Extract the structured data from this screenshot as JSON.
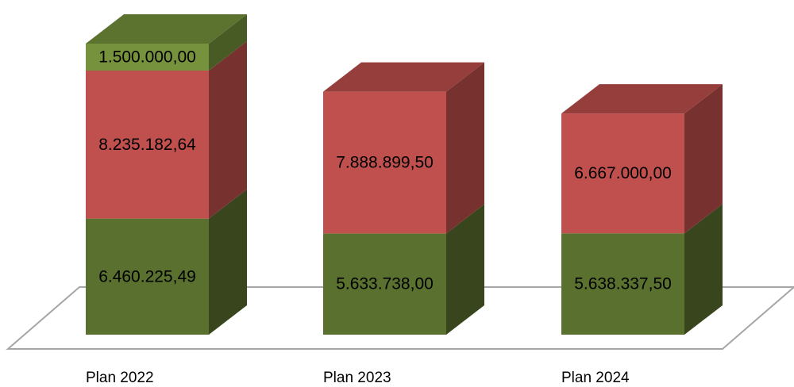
{
  "chart_data": {
    "type": "bar",
    "stacked": true,
    "three_d": true,
    "categories": [
      "Plan 2022",
      "Plan 2023",
      "Plan 2024"
    ],
    "series": [
      {
        "values": [
          6460225.49,
          5633738.0,
          5638337.5
        ],
        "labels": [
          "6.460.225,49",
          "5.633.738,00",
          "5.638.337,50"
        ],
        "color": "#5A702E"
      },
      {
        "values": [
          8235182.64,
          7888899.5,
          6667000.0
        ],
        "labels": [
          "8.235.182,64",
          "7.888.899,50",
          "6.667.000,00"
        ],
        "color": "#C0504D"
      },
      {
        "values": [
          1500000.0,
          0,
          0
        ],
        "labels": [
          "1.500.000,00",
          "",
          ""
        ],
        "color": "#76923C"
      }
    ],
    "title": "",
    "xlabel": "",
    "ylabel": "",
    "legend": "none",
    "grid": false
  }
}
